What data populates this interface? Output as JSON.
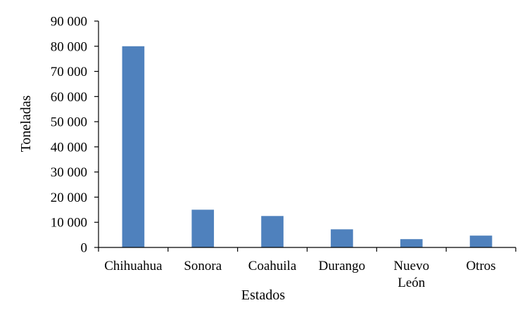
{
  "chart_data": {
    "type": "bar",
    "title": "",
    "xlabel": "Estados",
    "ylabel": "Toneladas",
    "categories": [
      [
        "Chihuahua"
      ],
      [
        "Sonora"
      ],
      [
        "Coahuila"
      ],
      [
        "Durango"
      ],
      [
        "Nuevo",
        "León"
      ],
      [
        "Otros"
      ]
    ],
    "values": [
      80000,
      15000,
      12500,
      7200,
      3300,
      4700
    ],
    "ylim": [
      0,
      90000
    ],
    "yticks": [
      0,
      10000,
      20000,
      30000,
      40000,
      50000,
      60000,
      70000,
      80000,
      90000
    ],
    "ytick_labels": [
      "0",
      "10 000",
      "20 000",
      "30 000",
      "40 000",
      "50 000",
      "60 000",
      "70 000",
      "80 000",
      "90 000"
    ],
    "bar_color": "#4F81BD",
    "grid": false,
    "legend": "none"
  }
}
